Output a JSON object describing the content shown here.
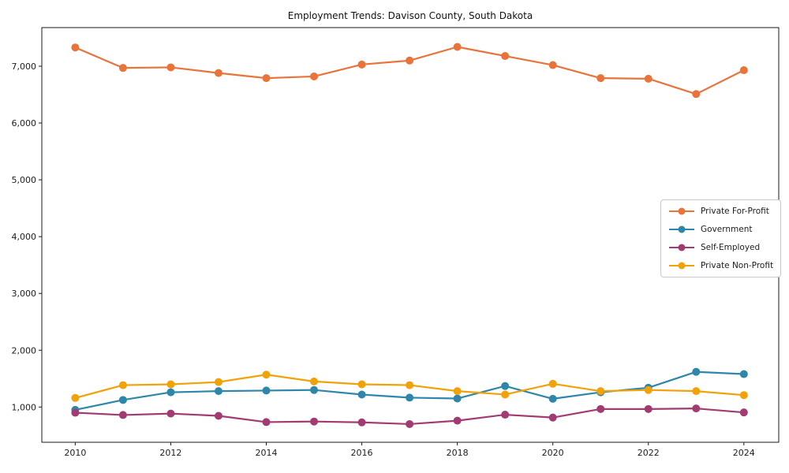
{
  "chart_data": {
    "type": "line",
    "title": "Employment Trends: Davison County, South Dakota",
    "xlabel": "",
    "ylabel": "",
    "x": [
      2010,
      2011,
      2012,
      2013,
      2014,
      2015,
      2016,
      2017,
      2018,
      2019,
      2020,
      2021,
      2022,
      2023,
      2024
    ],
    "series": [
      {
        "name": "Private For-Profit",
        "color": "#E8743B",
        "values": [
          7330,
          6970,
          6980,
          6880,
          6790,
          6820,
          7030,
          7100,
          7340,
          7180,
          7020,
          6790,
          6780,
          6510,
          6930
        ]
      },
      {
        "name": "Government",
        "color": "#2E86AB",
        "values": [
          950,
          1125,
          1260,
          1280,
          1290,
          1300,
          1220,
          1165,
          1150,
          1370,
          1145,
          1260,
          1340,
          1620,
          1580
        ]
      },
      {
        "name": "Self-Employed",
        "color": "#A23B72",
        "values": [
          900,
          860,
          885,
          845,
          735,
          745,
          730,
          700,
          760,
          865,
          815,
          965,
          965,
          975,
          905
        ]
      },
      {
        "name": "Private Non-Profit",
        "color": "#F1A208",
        "values": [
          1160,
          1385,
          1400,
          1440,
          1570,
          1450,
          1400,
          1385,
          1280,
          1220,
          1410,
          1280,
          1300,
          1280,
          1210
        ]
      }
    ],
    "xlim": [
      2009.3,
      2024.73
    ],
    "ylim": [
      380,
      7680
    ],
    "x_ticks": {
      "values": [
        2010,
        2012,
        2014,
        2016,
        2018,
        2020,
        2022,
        2024
      ],
      "labels": [
        "2010",
        "2012",
        "2014",
        "2016",
        "2018",
        "2020",
        "2022",
        "2024"
      ]
    },
    "y_ticks": {
      "values": [
        1000,
        2000,
        3000,
        4000,
        5000,
        6000,
        7000
      ],
      "labels": [
        "1,000",
        "2,000",
        "3,000",
        "4,000",
        "5,000",
        "6,000",
        "7,000"
      ]
    },
    "grid": false,
    "legend_position": "center right",
    "marker": "circle",
    "frame_color": "#1a1a1a"
  }
}
